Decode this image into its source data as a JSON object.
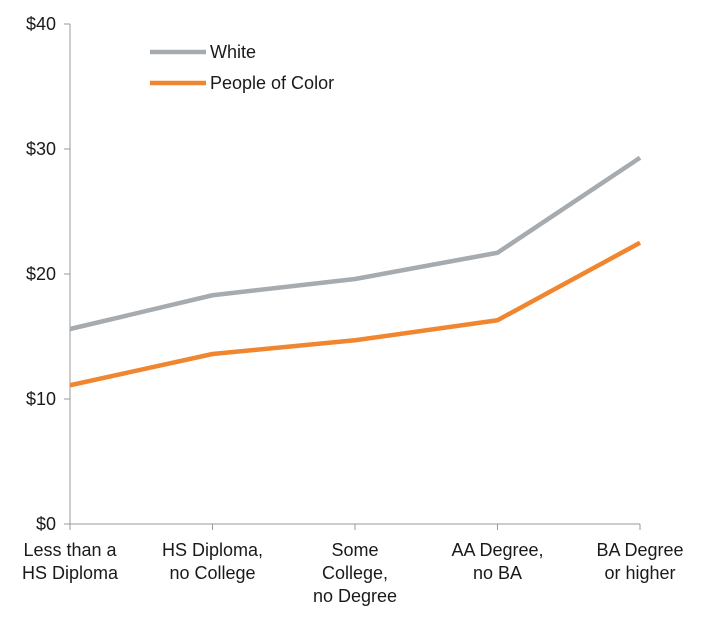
{
  "chart_data": {
    "type": "line",
    "categories": [
      [
        "Less than a",
        "HS Diploma"
      ],
      [
        "HS Diploma,",
        "no College"
      ],
      [
        "Some",
        "College,",
        "no Degree"
      ],
      [
        "AA Degree,",
        "no BA"
      ],
      [
        "BA Degree",
        "or higher"
      ]
    ],
    "series": [
      {
        "name": "White",
        "values": [
          15.6,
          18.3,
          19.6,
          21.7,
          29.3
        ],
        "color": "#a6abaf"
      },
      {
        "name": "People of Color",
        "values": [
          11.1,
          13.6,
          14.7,
          16.3,
          22.5
        ],
        "color": "#f0862f"
      }
    ],
    "ylim": [
      0,
      40
    ],
    "yticks": [
      0,
      10,
      20,
      30,
      40
    ],
    "ytick_labels": [
      "$0",
      "$10",
      "$20",
      "$30",
      "$40"
    ],
    "title": "",
    "xlabel": "",
    "ylabel": "",
    "legend": "top-left",
    "grid": false
  }
}
